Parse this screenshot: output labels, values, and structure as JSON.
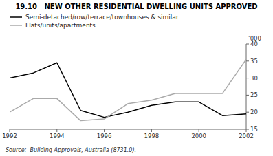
{
  "chart_data": {
    "type": "line",
    "title": "19.10   NEW OTHER RESIDENTIAL DWELLING UNITS APPROVED",
    "ylabel": "’000",
    "source": "Source:  Building Approvals, Australia (8731.0).",
    "x": [
      1992,
      1993,
      1994,
      1995,
      1996,
      1997,
      1998,
      1999,
      2000,
      2001,
      2002
    ],
    "series": [
      {
        "name": "Semi-detached/row/terrace/townhouses & similar",
        "color": "#000000",
        "values": [
          30.0,
          31.5,
          34.5,
          20.5,
          18.5,
          20.0,
          22.0,
          23.0,
          23.0,
          19.0,
          19.5
        ]
      },
      {
        "name": "Flats/units/apartments",
        "color": "#aaaaaa",
        "values": [
          20.0,
          24.0,
          24.0,
          17.5,
          18.0,
          22.5,
          23.5,
          25.5,
          25.5,
          25.5,
          35.5
        ]
      }
    ],
    "xlim": [
      1992,
      2002
    ],
    "ylim": [
      15,
      40
    ],
    "xticks": [
      1992,
      1994,
      1996,
      1998,
      2000,
      2002
    ],
    "yticks": [
      15,
      20,
      25,
      30,
      35,
      40
    ],
    "grid": false,
    "legend": "upper left"
  }
}
